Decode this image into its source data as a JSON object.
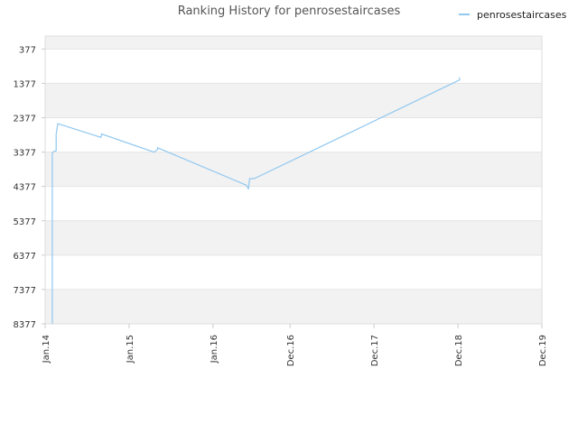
{
  "chart_data": {
    "type": "line",
    "title": "Ranking History for penrosestaircases",
    "xlabel": "",
    "ylabel": "",
    "y_inverted": true,
    "ylim": [
      8377,
      0
    ],
    "y_ticks": [
      377,
      1377,
      2377,
      3377,
      4377,
      5377,
      6377,
      7377,
      8377
    ],
    "y_tick_labels": [
      "377",
      "1377",
      "2377",
      "3377",
      "4377",
      "5377",
      "6377",
      "7377",
      "8377"
    ],
    "x_ticks": [
      "2014-01-01",
      "2015-01-01",
      "2016-01-01",
      "2016-12-01",
      "2017-12-01",
      "2018-12-01",
      "2019-12-01"
    ],
    "x_tick_labels": [
      "Jan.14",
      "Jan.15",
      "Jan.16",
      "Dec.16",
      "Dec.17",
      "Dec.18",
      "Dec.19"
    ],
    "xlim": [
      "2014-01-01",
      "2019-12-01"
    ],
    "grid": true,
    "legend_position": "top-right",
    "series": [
      {
        "name": "penrosestaircases",
        "color": "#90c8f0",
        "points": [
          [
            "2014-02-01",
            8377
          ],
          [
            "2014-02-01",
            3390
          ],
          [
            "2014-02-10",
            3350
          ],
          [
            "2014-02-18",
            3340
          ],
          [
            "2014-02-18",
            2850
          ],
          [
            "2014-02-25",
            2550
          ],
          [
            "2014-09-01",
            2950
          ],
          [
            "2014-09-03",
            2850
          ],
          [
            "2015-04-20",
            3380
          ],
          [
            "2015-05-05",
            3300
          ],
          [
            "2015-05-05",
            3250
          ],
          [
            "2016-05-25",
            4340
          ],
          [
            "2016-06-03",
            4450
          ],
          [
            "2016-06-08",
            4150
          ],
          [
            "2016-06-28",
            4150
          ],
          [
            "2018-12-08",
            1280
          ],
          [
            "2018-12-08",
            1200
          ]
        ]
      }
    ]
  }
}
